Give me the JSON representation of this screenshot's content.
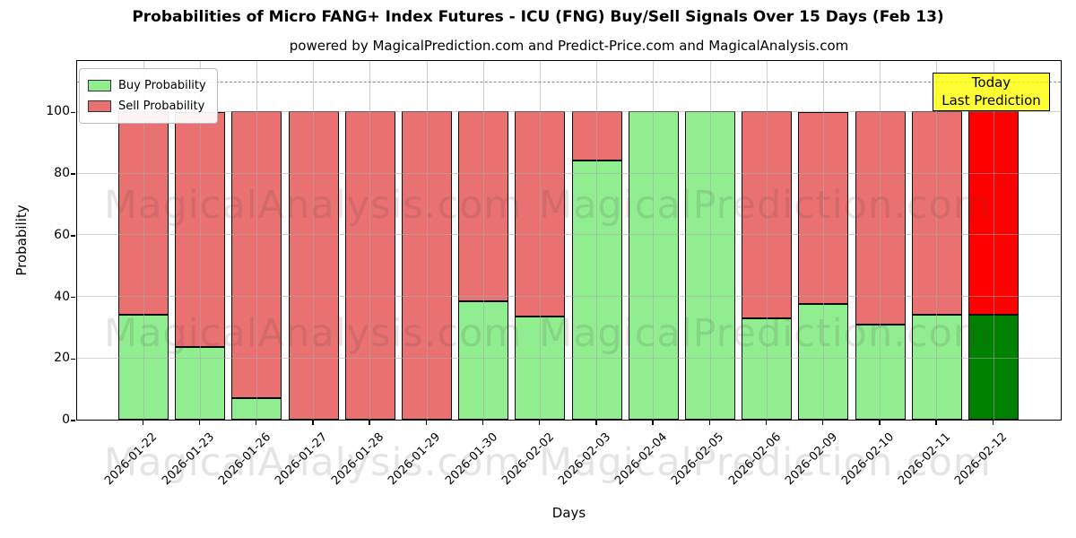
{
  "title": "Probabilities of Micro FANG+ Index Futures - ICU (FNG) Buy/Sell Signals Over 15 Days (Feb 13)",
  "subtitle": "powered by MagicalPrediction.com and Predict-Price.com and MagicalAnalysis.com",
  "legend": {
    "items": [
      {
        "label": "Buy Probability",
        "color": "#90EE90"
      },
      {
        "label": "Sell Probability",
        "color": "#E97171"
      }
    ]
  },
  "annotation": {
    "line1": "Today",
    "line2": "Last Prediction",
    "bg": "#FFFF00"
  },
  "watermarks": {
    "left": "MagicalAnalysis.com",
    "right": "MagicalPrediction.com"
  },
  "axes": {
    "xlabel": "Days",
    "ylabel": "Probability",
    "yticks": [
      "0",
      "20",
      "40",
      "60",
      "80",
      "100"
    ],
    "ylim": [
      0,
      117
    ],
    "dashed_line_y": 110,
    "grid": true,
    "legend_position": "upper left"
  },
  "colors": {
    "buy": "#90EE90",
    "sell": "#E97171",
    "today_buy": "#008000",
    "today_sell": "#FF0000",
    "bar_edge": "#0a0a0a",
    "annotation_bg": "#FFFF00",
    "grid": "#aaaaaa"
  },
  "chart_data": {
    "type": "bar",
    "stacked": true,
    "title": "Probabilities of Micro FANG+ Index Futures - ICU (FNG) Buy/Sell Signals Over 15 Days (Feb 13)",
    "xlabel": "Days",
    "ylabel": "Probability",
    "ylim": [
      0,
      117
    ],
    "grid": true,
    "legend_position": "upper left",
    "categories": [
      "2026-01-22",
      "2026-01-23",
      "2026-01-26",
      "2026-01-27",
      "2026-01-28",
      "2026-01-29",
      "2026-01-30",
      "2026-02-02",
      "2026-02-03",
      "2026-02-04",
      "2026-02-05",
      "2026-02-06",
      "2026-02-09",
      "2026-02-10",
      "2026-02-11",
      "2026-02-12"
    ],
    "series": [
      {
        "name": "Buy Probability",
        "color": "#90EE90",
        "values": [
          34,
          23.5,
          7,
          0,
          0,
          0,
          38.5,
          33.5,
          84,
          100,
          100,
          33,
          37.5,
          31,
          34,
          34
        ]
      },
      {
        "name": "Sell Probability",
        "color": "#E97171",
        "values": [
          66,
          76.5,
          93,
          100,
          100,
          100,
          61.5,
          66.5,
          16,
          0,
          0,
          67,
          62.5,
          69,
          66,
          66
        ]
      }
    ],
    "today_bar": {
      "index": 15,
      "category": "2026-02-12",
      "buy_color": "#008000",
      "sell_color": "#FF0000",
      "label": "Today Last Prediction"
    }
  }
}
